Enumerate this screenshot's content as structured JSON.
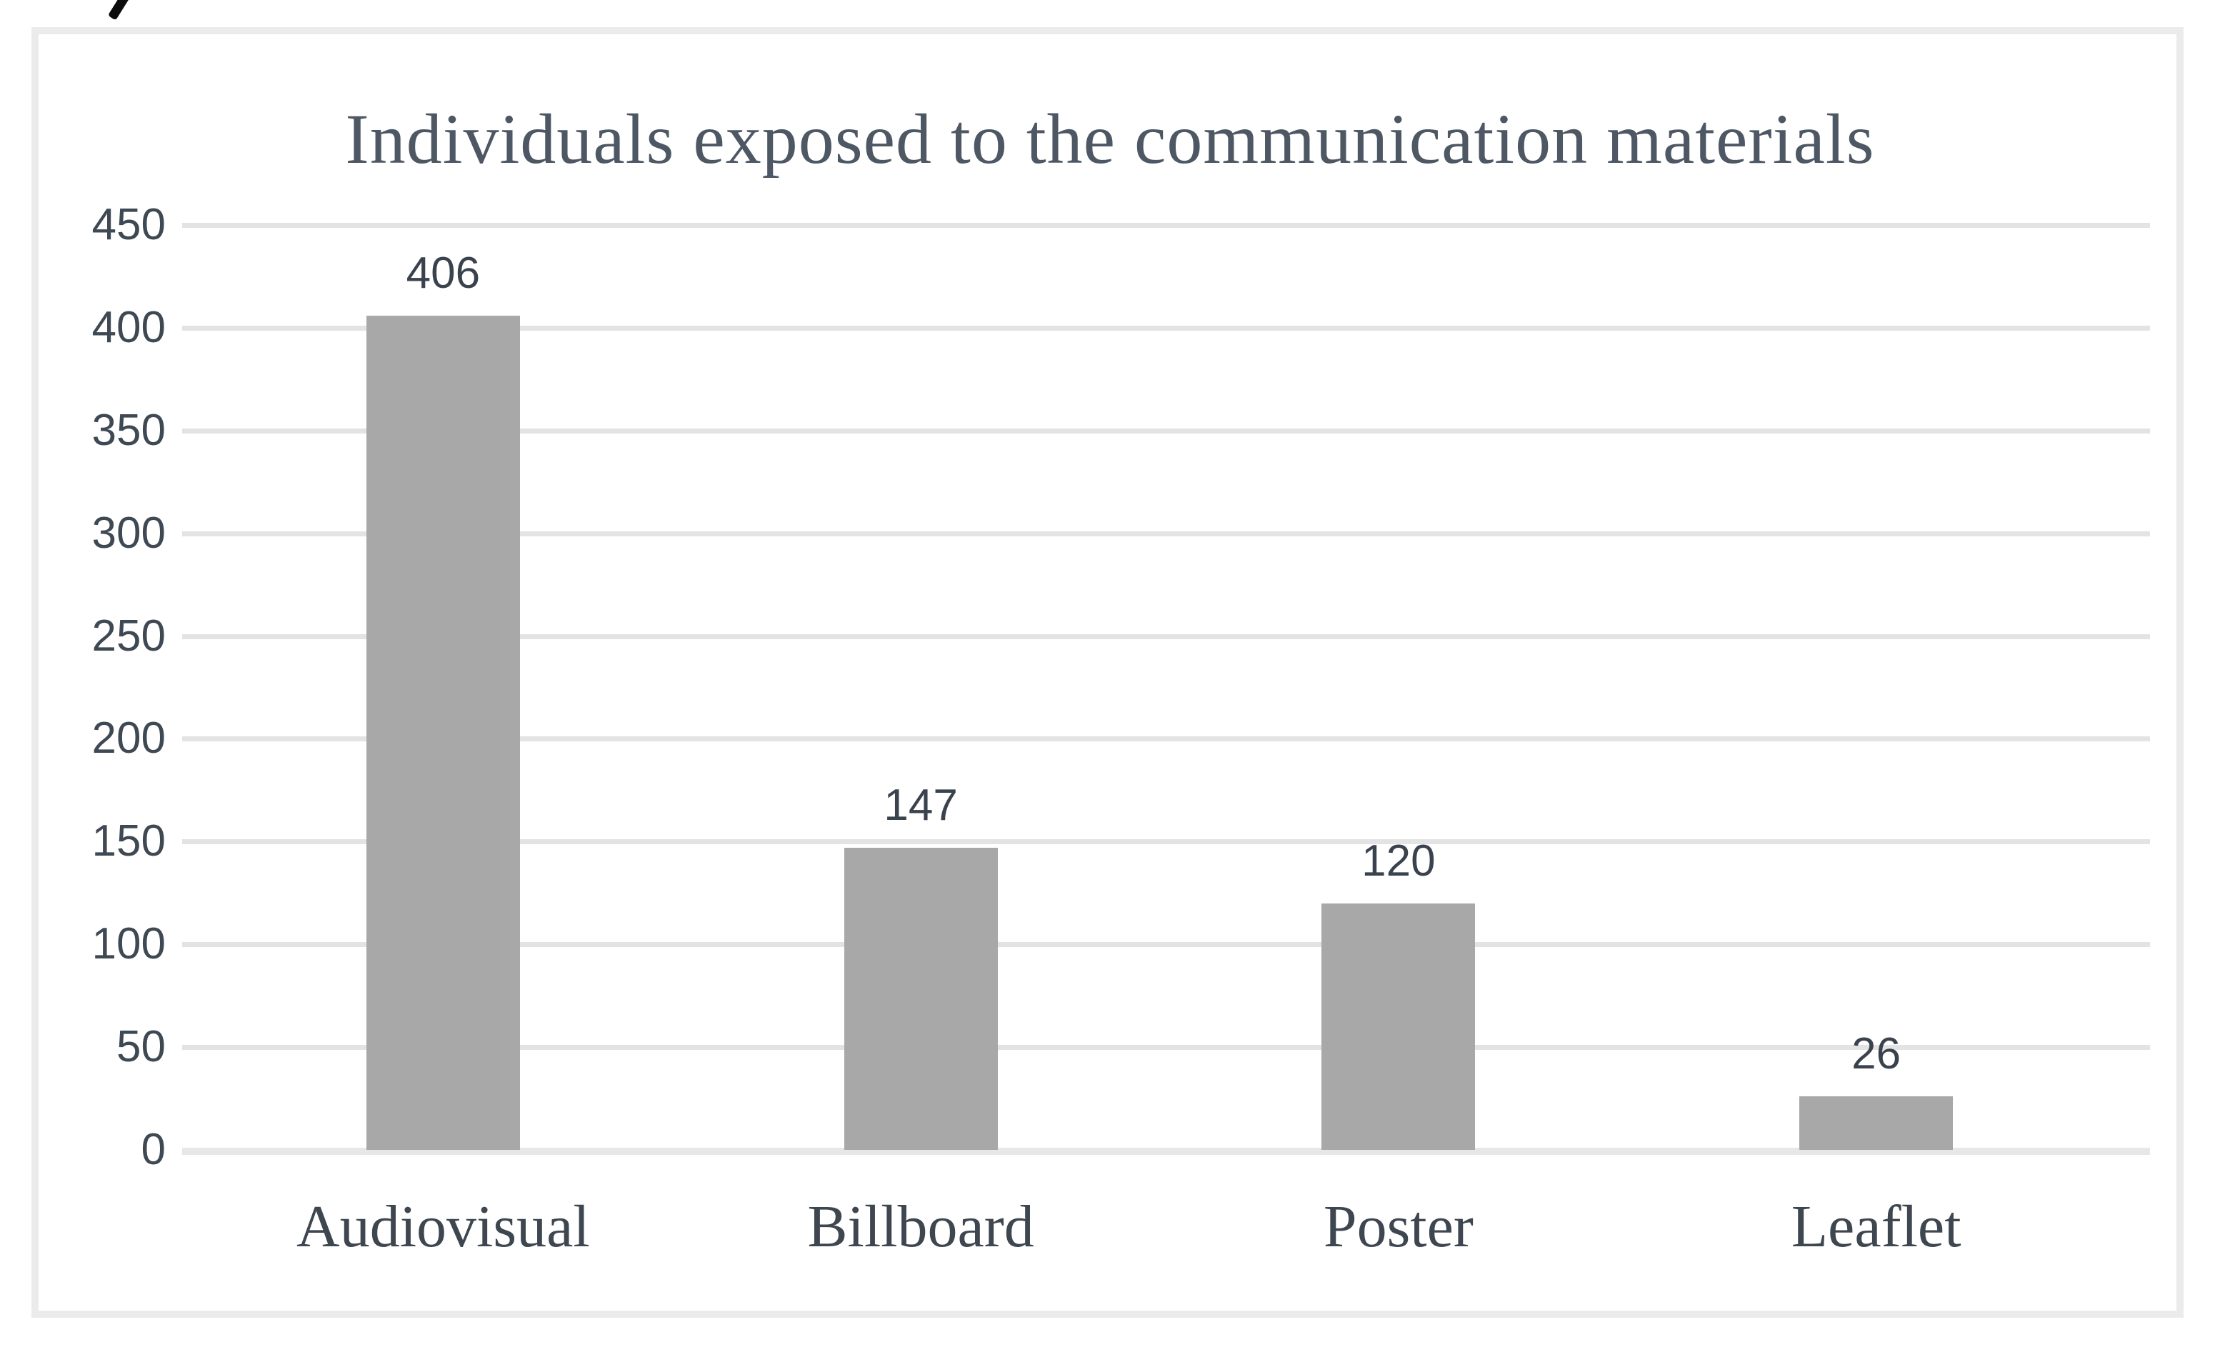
{
  "figure": {
    "cropped_corner_glyph": "/",
    "frame_border_color": "#ebebeb",
    "background_color": "#ffffff"
  },
  "chart_data": {
    "type": "bar",
    "title": "Individuals exposed to the communication materials",
    "categories": [
      "Audiovisual",
      "Billboard",
      "Poster",
      "Leaflet"
    ],
    "values": [
      406,
      147,
      120,
      26
    ],
    "value_labels": [
      "406",
      "147",
      "120",
      "26"
    ],
    "xlabel": "",
    "ylabel": "",
    "ylim": [
      0,
      450
    ],
    "ytick_step": 50,
    "yticks": [
      450,
      400,
      350,
      300,
      250,
      200,
      150,
      100,
      50,
      0
    ],
    "grid": "horizontal",
    "legend": "none",
    "bar_color": "#a8a8a8",
    "gridline_color": "#e3e3e3",
    "title_color": "#4e5864",
    "tick_label_color": "#3f4954"
  }
}
